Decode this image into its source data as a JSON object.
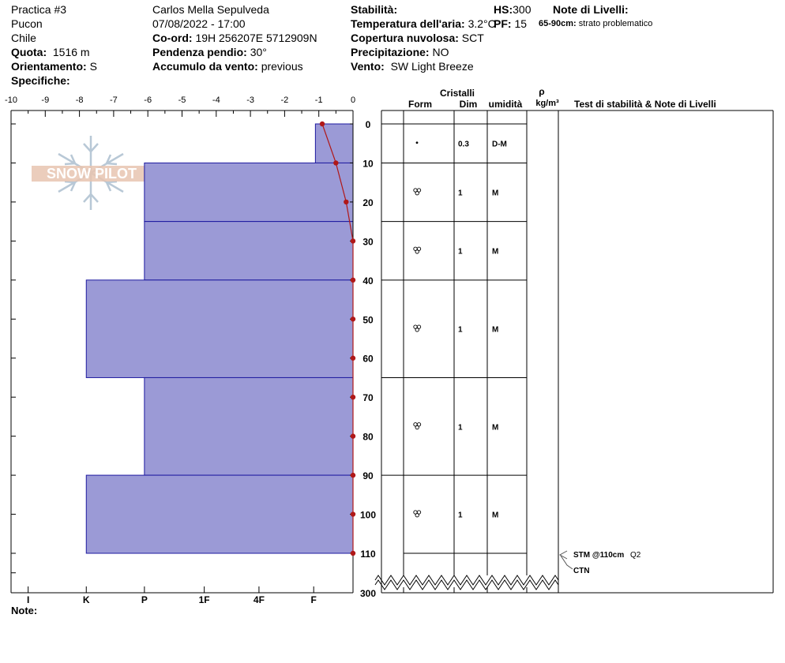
{
  "header": {
    "col1": {
      "title": "Practica #3",
      "location": "Pucon",
      "country": "Chile",
      "elevation_label": "Quota:",
      "elevation_value": "1516 m",
      "aspect_label": "Orientamento:",
      "aspect_value": "S",
      "specifics_label": "Specifiche:"
    },
    "col2": {
      "observer": "Carlos Mella Sepulveda",
      "datetime": "07/08/2022 - 17:00",
      "coords_label": "Co-ord:",
      "coords_value": "19H 256207E 5712909N",
      "slope_label": "Pendenza pendio:",
      "slope_value": "30°",
      "wind_loading_label": "Accumulo da vento:",
      "wind_loading_value": "previous"
    },
    "col3": {
      "stability_label": "Stabilità:",
      "air_temp_label": "Temperatura dell'aria:",
      "air_temp_value": "3.2°C",
      "cloud_label": "Copertura nuvolosa:",
      "cloud_value": "SCT",
      "precip_label": "Precipitazione:",
      "precip_value": "NO",
      "wind_label": "Vento:",
      "wind_value": "SW Light Breeze"
    },
    "col4": {
      "hs_label": "HS:",
      "hs_value": "300",
      "pf_label": "PF:",
      "pf_value": "15"
    },
    "col5": {
      "layer_notes_label": "Note di Livelli:",
      "note_range": "65-90cm:",
      "note_text": "strato problematico"
    }
  },
  "table_headers": {
    "cristalli": "Cristalli",
    "form": "Form",
    "dim": "Dim",
    "umidita": "umidità",
    "rho": "ρ",
    "rho_unit": "kg/m³",
    "tests": "Test di stabilità & Note di Livelli"
  },
  "footer": {
    "notes_label": "Note:"
  },
  "logo_text": "SNOW PILOT",
  "tests": [
    {
      "text": "STM @110cm",
      "quality": "Q2"
    },
    {
      "text": "CTN",
      "quality": ""
    }
  ],
  "chart_data": {
    "type": "snow_profile",
    "temperature_axis": {
      "min": -10,
      "max": 0,
      "ticks": [
        "-10",
        "-9",
        "-8",
        "-7",
        "-6",
        "-5",
        "-4",
        "-3",
        "-2",
        "-1",
        "0"
      ]
    },
    "depth_axis": {
      "min": 0,
      "max": 110,
      "break_value": "300",
      "ticks": [
        "0",
        "10",
        "20",
        "30",
        "40",
        "50",
        "60",
        "70",
        "80",
        "90",
        "100",
        "110"
      ]
    },
    "hardness_axis": {
      "labels": [
        "I",
        "K",
        "P",
        "1F",
        "4F",
        "F"
      ],
      "positions_temp_units": [
        -9.5,
        -7.8,
        -6.1,
        -4.35,
        -2.75,
        -1.15
      ]
    },
    "hardness_profile": [
      {
        "top": 0,
        "bottom": 10,
        "hardness": "F"
      },
      {
        "top": 10,
        "bottom": 25,
        "hardness": "P"
      },
      {
        "top": 25,
        "bottom": 40,
        "hardness": "P"
      },
      {
        "top": 40,
        "bottom": 65,
        "hardness": "K"
      },
      {
        "top": 65,
        "bottom": 90,
        "hardness": "P"
      },
      {
        "top": 90,
        "bottom": 110,
        "hardness": "K"
      }
    ],
    "temperature_profile": [
      {
        "depth": 0,
        "temp": -0.9
      },
      {
        "depth": 10,
        "temp": -0.5
      },
      {
        "depth": 20,
        "temp": -0.2
      },
      {
        "depth": 30,
        "temp": 0
      },
      {
        "depth": 40,
        "temp": 0
      },
      {
        "depth": 50,
        "temp": 0
      },
      {
        "depth": 60,
        "temp": 0
      },
      {
        "depth": 70,
        "temp": 0
      },
      {
        "depth": 80,
        "temp": 0
      },
      {
        "depth": 90,
        "temp": 0
      },
      {
        "depth": 100,
        "temp": 0
      },
      {
        "depth": 110,
        "temp": 0
      }
    ],
    "layers": [
      {
        "top": 0,
        "bottom": 10,
        "form": "•",
        "dim": "0.3",
        "wetness": "D-M"
      },
      {
        "top": 10,
        "bottom": 25,
        "form": "rounded-grains",
        "dim": "1",
        "wetness": "M"
      },
      {
        "top": 25,
        "bottom": 40,
        "form": "rounded-grains",
        "dim": "1",
        "wetness": "M"
      },
      {
        "top": 40,
        "bottom": 65,
        "form": "rounded-grains",
        "dim": "1",
        "wetness": "M"
      },
      {
        "top": 65,
        "bottom": 90,
        "form": "rounded-grains",
        "dim": "1",
        "wetness": "M"
      },
      {
        "top": 90,
        "bottom": 110,
        "form": "rounded-grains",
        "dim": "1",
        "wetness": "M"
      }
    ],
    "colors": {
      "hardness_fill": "#9b9ad6",
      "hardness_stroke": "#1e1aa0",
      "temperature": "#b01818"
    }
  }
}
